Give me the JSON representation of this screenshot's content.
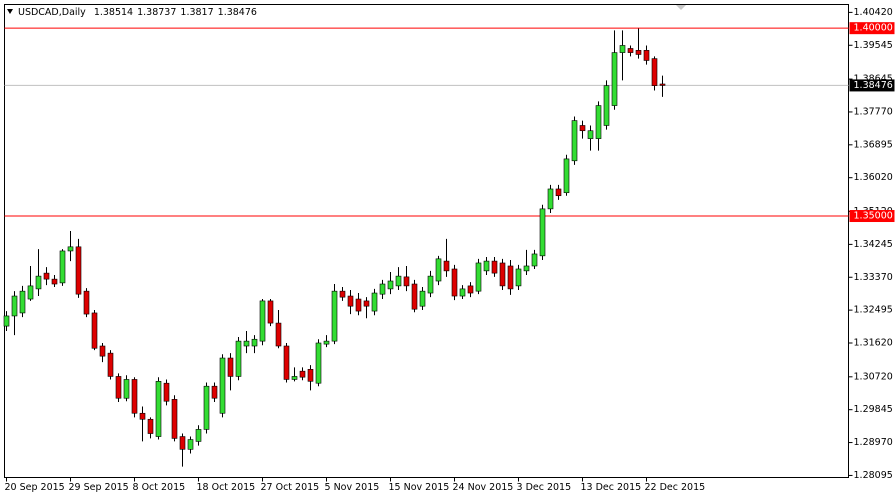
{
  "chart_data": {
    "type": "candlestick",
    "symbol": "USDCAD,Daily",
    "up_color": "#33dd33",
    "down_color": "#dd0000",
    "bid_line_color": "#c0c0c0",
    "categories": [
      "20 Sep 2015",
      null,
      null,
      null,
      null,
      null,
      null,
      null,
      "29 Sep 2015",
      null,
      null,
      null,
      null,
      null,
      null,
      null,
      "8 Oct 2015",
      null,
      null,
      null,
      null,
      null,
      null,
      null,
      "18 Oct 2015",
      null,
      null,
      null,
      null,
      null,
      null,
      null,
      "27 Oct 2015",
      null,
      null,
      null,
      null,
      null,
      null,
      null,
      "5 Nov 2015",
      null,
      null,
      null,
      null,
      null,
      null,
      null,
      "15 Nov 2015",
      null,
      null,
      null,
      null,
      null,
      null,
      null,
      "24 Nov 2015",
      null,
      null,
      null,
      null,
      null,
      null,
      null,
      "3 Dec 2015",
      null,
      null,
      null,
      null,
      null,
      null,
      null,
      "13 Dec 2015",
      null,
      null,
      null,
      null,
      null,
      null,
      null,
      "22 Dec 2015",
      null,
      null
    ],
    "open": [
      1.3207,
      1.3234,
      1.3242,
      1.3279,
      1.3306,
      1.3348,
      1.3332,
      1.3322,
      1.3407,
      1.3418,
      1.33,
      1.3242,
      1.3154,
      1.3135,
      1.3073,
      1.3015,
      1.3065,
      1.2975,
      1.2959,
      1.2913,
      1.3055,
      1.3012,
      1.2913,
      1.2879,
      1.29,
      1.2932,
      1.3047,
      1.2975,
      1.3122,
      1.3073,
      1.3154,
      1.3154,
      1.3167,
      1.3274,
      1.3215,
      1.3154,
      1.3065,
      1.3087,
      1.3092,
      1.3055,
      1.3159,
      1.3167,
      1.33,
      1.3287,
      1.3279,
      1.3274,
      1.3247,
      1.3292,
      1.3306,
      1.3314,
      1.3338,
      1.3319,
      1.326,
      1.3295,
      1.3327,
      1.338,
      1.3359,
      1.3287,
      1.3314,
      1.33,
      1.3354,
      1.338,
      1.3375,
      1.3367,
      1.3314,
      1.3354,
      1.3367,
      1.3394,
      1.3519,
      1.3572,
      1.3562,
      1.3647,
      1.3741,
      1.3706,
      1.3706,
      1.3741,
      1.3794,
      1.3935,
      1.3946,
      1.3941,
      1.3941,
      1.3919,
      1.38514
    ],
    "high": [
      1.3247,
      1.33,
      1.3314,
      1.3367,
      1.3412,
      1.3364,
      1.3343,
      1.3412,
      1.346,
      1.3439,
      1.3308,
      1.325,
      1.3162,
      1.3143,
      1.3081,
      1.3076,
      1.3071,
      1.2993,
      1.2964,
      1.3071,
      1.3065,
      1.3023,
      1.2921,
      1.2913,
      1.2943,
      1.3057,
      1.3057,
      1.3132,
      1.3135,
      1.3178,
      1.3194,
      1.3183,
      1.3279,
      1.3279,
      1.325,
      1.3162,
      1.3097,
      1.3097,
      1.3103,
      1.3172,
      1.3183,
      1.3319,
      1.3311,
      1.3303,
      1.3295,
      1.3284,
      1.3306,
      1.333,
      1.3351,
      1.3364,
      1.3367,
      1.333,
      1.3311,
      1.3354,
      1.3394,
      1.3439,
      1.337,
      1.3316,
      1.3324,
      1.3386,
      1.3391,
      1.3391,
      1.3386,
      1.3383,
      1.337,
      1.341,
      1.341,
      1.353,
      1.3583,
      1.3583,
      1.3663,
      1.3765,
      1.3754,
      1.3741,
      1.3805,
      1.3861,
      1.3994,
      1.3994,
      1.3954,
      1.3999,
      1.3954,
      1.3925,
      1.38737
    ],
    "low": [
      1.3194,
      1.3183,
      1.3231,
      1.3274,
      1.3287,
      1.3316,
      1.3311,
      1.3314,
      1.338,
      1.3282,
      1.3231,
      1.3143,
      1.3111,
      1.3065,
      1.3005,
      1.3007,
      1.2964,
      1.29,
      1.2908,
      1.2905,
      1.2996,
      1.29,
      1.2833,
      1.2868,
      1.2889,
      1.2921,
      1.3005,
      1.2964,
      1.3036,
      1.3063,
      1.3135,
      1.3135,
      1.3156,
      1.3207,
      1.3148,
      1.3057,
      1.306,
      1.3063,
      1.3036,
      1.3047,
      1.3151,
      1.3159,
      1.3274,
      1.3239,
      1.3236,
      1.3228,
      1.3236,
      1.3279,
      1.3292,
      1.3303,
      1.33,
      1.3244,
      1.325,
      1.3284,
      1.3316,
      1.3338,
      1.3276,
      1.3279,
      1.3284,
      1.3292,
      1.3343,
      1.3338,
      1.3303,
      1.329,
      1.3303,
      1.3343,
      1.3359,
      1.3383,
      1.3508,
      1.3543,
      1.3554,
      1.3636,
      1.3706,
      1.3674,
      1.3674,
      1.373,
      1.3783,
      1.3861,
      1.3925,
      1.3919,
      1.3903,
      1.3834,
      1.3817
    ],
    "close": [
      1.3234,
      1.3287,
      1.33,
      1.3314,
      1.334,
      1.3332,
      1.3319,
      1.3407,
      1.3418,
      1.3292,
      1.3239,
      1.3148,
      1.3127,
      1.3073,
      1.3015,
      1.3065,
      1.2975,
      1.2959,
      1.2921,
      1.306,
      1.3007,
      1.2908,
      1.2879,
      1.2905,
      1.2932,
      1.3047,
      1.3015,
      1.3122,
      1.3073,
      1.3167,
      1.3167,
      1.3172,
      1.3274,
      1.3215,
      1.3154,
      1.3065,
      1.3073,
      1.3071,
      1.306,
      1.3162,
      1.3167,
      1.33,
      1.3284,
      1.326,
      1.3247,
      1.326,
      1.3295,
      1.3319,
      1.3327,
      1.334,
      1.3314,
      1.3252,
      1.33,
      1.334,
      1.3386,
      1.3354,
      1.3287,
      1.3306,
      1.3295,
      1.3375,
      1.338,
      1.3348,
      1.3314,
      1.3306,
      1.3359,
      1.3367,
      1.3399,
      1.3519,
      1.3572,
      1.3554,
      1.3652,
      1.3754,
      1.3727,
      1.3727,
      1.3794,
      1.3847,
      1.3935,
      1.3954,
      1.3935,
      1.393,
      1.3914,
      1.3847,
      1.38476
    ],
    "ylim": [
      1.2804,
      1.4063
    ],
    "yticks": [
      {
        "value": 1.4042,
        "label": "1.40420"
      },
      {
        "value": 1.39545,
        "label": "1.39545"
      },
      {
        "value": 1.38645,
        "label": "1.38645"
      },
      {
        "value": 1.3777,
        "label": "1.37770"
      },
      {
        "value": 1.36895,
        "label": "1.36895"
      },
      {
        "value": 1.3602,
        "label": "1.36020"
      },
      {
        "value": 1.3512,
        "label": "1.35120"
      },
      {
        "value": 1.34245,
        "label": "1.34245"
      },
      {
        "value": 1.3337,
        "label": "1.33370"
      },
      {
        "value": 1.32495,
        "label": "1.32495"
      },
      {
        "value": 1.3162,
        "label": "1.31620"
      },
      {
        "value": 1.3072,
        "label": "1.30720"
      },
      {
        "value": 1.29845,
        "label": "1.29845"
      },
      {
        "value": 1.2897,
        "label": "1.28970"
      },
      {
        "value": 1.28095,
        "label": "1.28095"
      }
    ],
    "hlines": [
      {
        "value": 1.4,
        "label": "1.40000",
        "color": "#ff0000"
      },
      {
        "value": 1.35,
        "label": "1.35000",
        "color": "#ff0000"
      }
    ]
  }
}
